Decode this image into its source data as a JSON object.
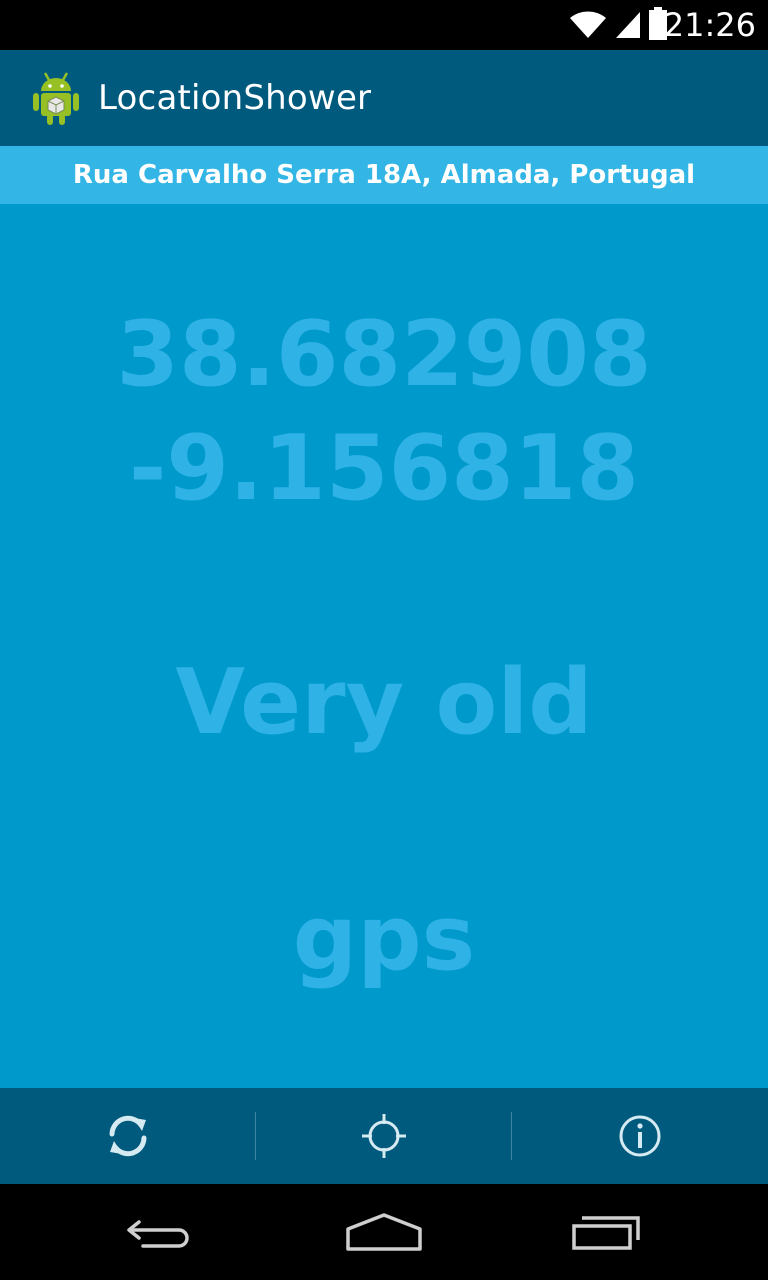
{
  "status_bar": {
    "time": "21:26",
    "icons": [
      "wifi-icon",
      "signal-icon",
      "battery-icon"
    ]
  },
  "action_bar": {
    "title": "LocationShower",
    "icon": "android-app-icon"
  },
  "address": "Rua Carvalho Serra 18A, Almada, Portugal",
  "location": {
    "latitude": "38.682908",
    "longitude": "-9.156818",
    "age": "Very old",
    "provider": "gps"
  },
  "bottom_actions": [
    {
      "name": "refresh-button",
      "icon": "refresh-icon"
    },
    {
      "name": "locate-button",
      "icon": "crosshair-icon"
    },
    {
      "name": "info-button",
      "icon": "info-icon"
    }
  ],
  "nav_bar": {
    "buttons": [
      "back-icon",
      "home-icon",
      "recents-icon"
    ]
  },
  "colors": {
    "status_bar": "#000000",
    "action_bar": "#005a7e",
    "address_bar": "#33b5e5",
    "main_background": "#0099cc",
    "big_text": "#2fb2e6",
    "nav_bar": "#000000"
  }
}
